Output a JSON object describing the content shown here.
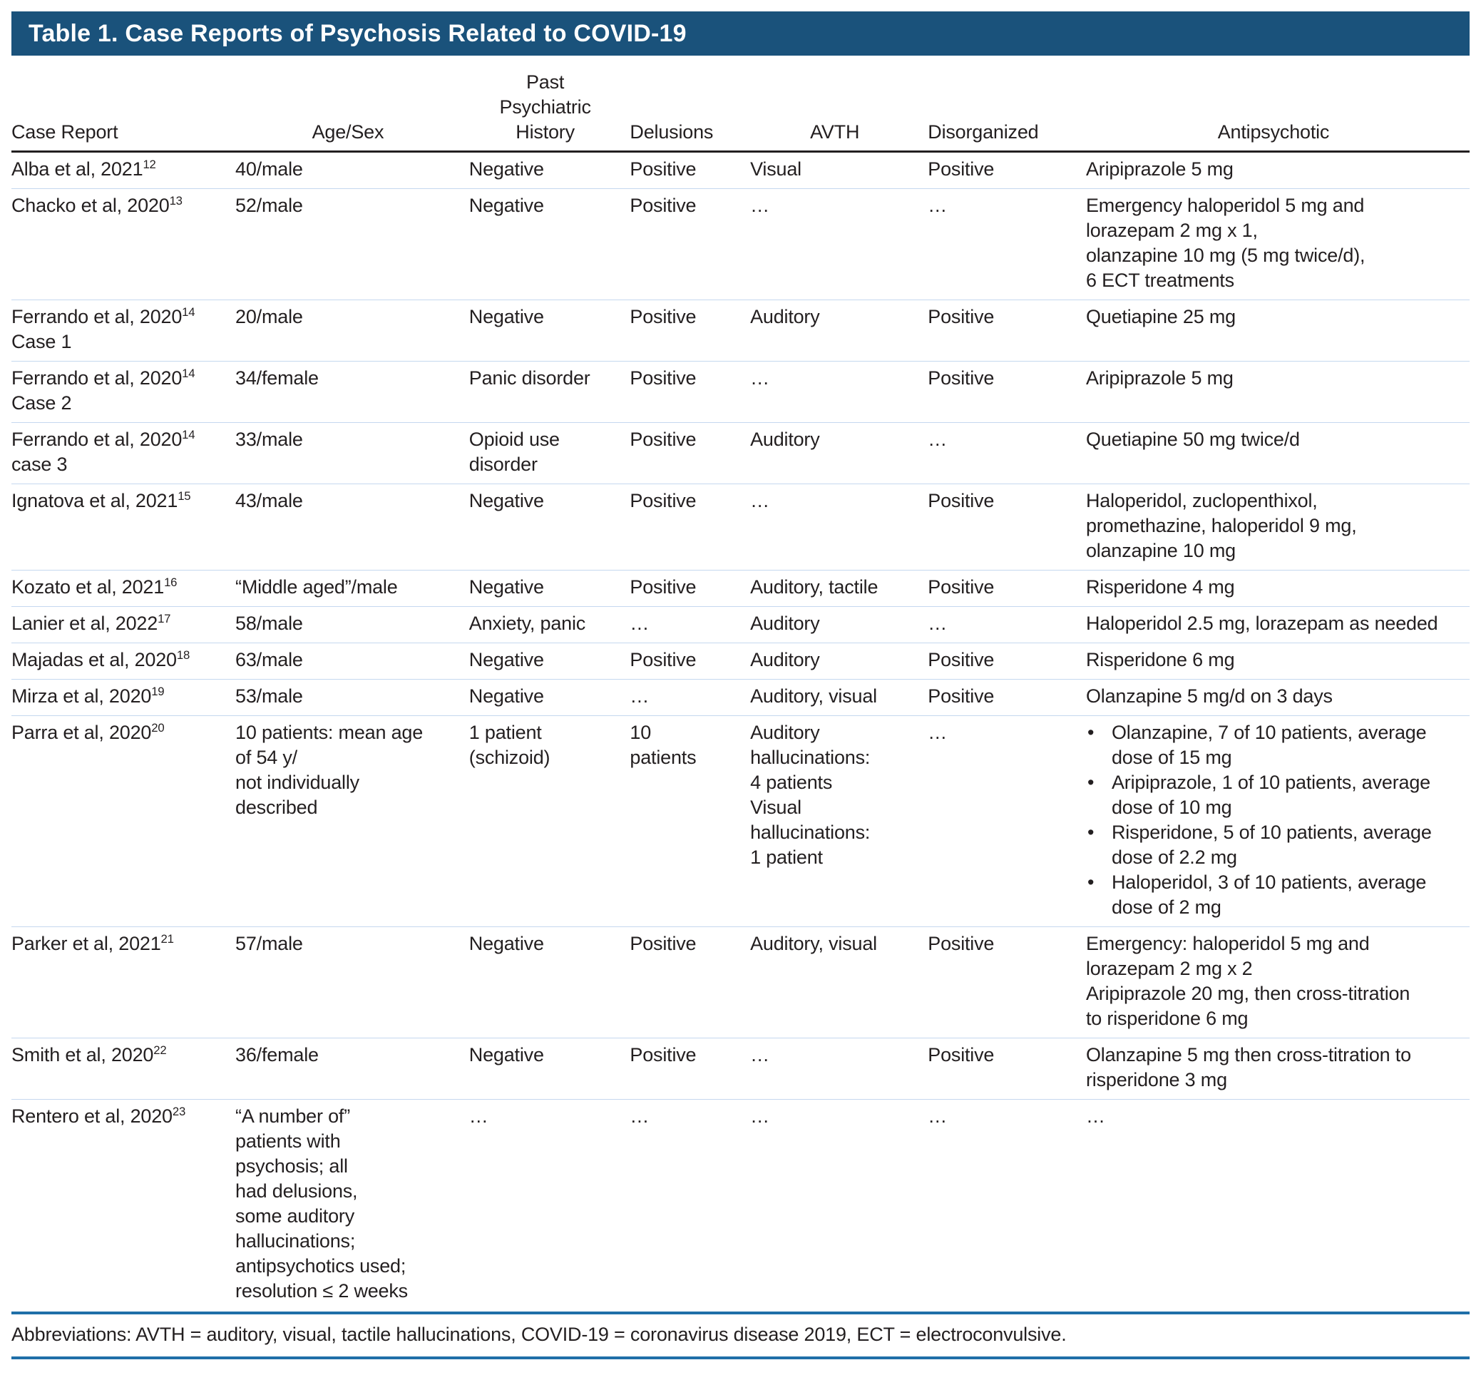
{
  "title": "Table 1. Case Reports of Psychosis Related to COVID-19",
  "columns": [
    {
      "key": "case_report",
      "label": "Case Report"
    },
    {
      "key": "age_sex",
      "label": "Age/Sex"
    },
    {
      "key": "history",
      "label": "Past\nPsychiatric\nHistory"
    },
    {
      "key": "delusions",
      "label": "Delusions"
    },
    {
      "key": "avth",
      "label": "AVTH"
    },
    {
      "key": "disorganized",
      "label": "Disorganized"
    },
    {
      "key": "antipsychotic",
      "label": "Antipsychotic"
    }
  ],
  "rows": [
    {
      "case_report": "Alba et al, 2021",
      "ref": "12",
      "case_label": "",
      "age_sex": "40/male",
      "history": "Negative",
      "delusions": "Positive",
      "avth": "Visual",
      "disorganized": "Positive",
      "antipsychotic": "Aripiprazole 5 mg"
    },
    {
      "case_report": "Chacko et al, 2020",
      "ref": "13",
      "case_label": "",
      "age_sex": "52/male",
      "history": "Negative",
      "delusions": "Positive",
      "avth": "…",
      "disorganized": "…",
      "antipsychotic": "Emergency haloperidol 5 mg and\nlorazepam 2 mg x 1,\nolanzapine 10 mg (5 mg twice/d),\n6 ECT treatments"
    },
    {
      "case_report": "Ferrando et al, 2020",
      "ref": "14",
      "case_label": "Case 1",
      "age_sex": "20/male",
      "history": "Negative",
      "delusions": "Positive",
      "avth": "Auditory",
      "disorganized": "Positive",
      "antipsychotic": "Quetiapine 25 mg"
    },
    {
      "case_report": "Ferrando et al, 2020",
      "ref": "14",
      "case_label": "Case 2",
      "age_sex": "34/female",
      "history": "Panic disorder",
      "delusions": "Positive",
      "avth": "…",
      "disorganized": "Positive",
      "antipsychotic": "Aripiprazole 5 mg"
    },
    {
      "case_report": "Ferrando et al, 2020",
      "ref": "14",
      "case_label": "case 3",
      "age_sex": "33/male",
      "history": "Opioid use\ndisorder",
      "delusions": "Positive",
      "avth": "Auditory",
      "disorganized": "…",
      "antipsychotic": "Quetiapine 50 mg twice/d"
    },
    {
      "case_report": "Ignatova et al, 2021",
      "ref": "15",
      "case_label": "",
      "age_sex": "43/male",
      "history": "Negative",
      "delusions": "Positive",
      "avth": "…",
      "disorganized": "Positive",
      "antipsychotic": "Haloperidol, zuclopenthixol,\npromethazine, haloperidol 9 mg,\nolanzapine 10 mg"
    },
    {
      "case_report": "Kozato et al, 2021",
      "ref": "16",
      "case_label": "",
      "age_sex": "“Middle aged”/male",
      "history": "Negative",
      "delusions": "Positive",
      "avth": "Auditory, tactile",
      "disorganized": "Positive",
      "antipsychotic": "Risperidone 4 mg"
    },
    {
      "case_report": "Lanier et al, 2022",
      "ref": "17",
      "case_label": "",
      "age_sex": "58/male",
      "history": "Anxiety, panic",
      "delusions": "…",
      "avth": "Auditory",
      "disorganized": "…",
      "antipsychotic": "Haloperidol 2.5 mg, lorazepam as needed"
    },
    {
      "case_report": "Majadas et al, 2020",
      "ref": "18",
      "case_label": "",
      "age_sex": "63/male",
      "history": "Negative",
      "delusions": "Positive",
      "avth": "Auditory",
      "disorganized": "Positive",
      "antipsychotic": "Risperidone 6 mg"
    },
    {
      "case_report": "Mirza et al, 2020",
      "ref": "19",
      "case_label": "",
      "age_sex": "53/male",
      "history": "Negative",
      "delusions": "…",
      "avth": "Auditory, visual",
      "disorganized": "Positive",
      "antipsychotic": "Olanzapine 5 mg/d on 3 days"
    },
    {
      "case_report": "Parra et al, 2020",
      "ref": "20",
      "case_label": "",
      "age_sex": "10 patients: mean age\nof 54 y/\nnot individually\ndescribed",
      "history": "1 patient\n(schizoid)",
      "delusions": "10\npatients",
      "avth": "Auditory\nhallucinations:\n4 patients\nVisual\nhallucinations:\n1 patient",
      "disorganized": "…",
      "antipsychotic": {
        "bullets": [
          "Olanzapine, 7 of 10 patients, average dose of 15 mg",
          "Aripiprazole, 1 of 10 patients, average dose of 10 mg",
          "Risperidone, 5 of 10 patients, average dose of 2.2 mg",
          "Haloperidol, 3 of 10 patients, average dose of 2 mg"
        ]
      }
    },
    {
      "case_report": "Parker et al, 2021",
      "ref": "21",
      "case_label": "",
      "age_sex": "57/male",
      "history": "Negative",
      "delusions": "Positive",
      "avth": "Auditory, visual",
      "disorganized": "Positive",
      "antipsychotic": "Emergency: haloperidol 5 mg and\nlorazepam 2 mg x 2\nAripiprazole 20 mg, then cross-titration\nto risperidone 6 mg"
    },
    {
      "case_report": "Smith et al, 2020",
      "ref": "22",
      "case_label": "",
      "age_sex": "36/female",
      "history": "Negative",
      "delusions": "Positive",
      "avth": "…",
      "disorganized": "Positive",
      "antipsychotic": "Olanzapine 5 mg then cross-titration to\nrisperidone 3 mg"
    },
    {
      "case_report": "Rentero et al, 2020",
      "ref": "23",
      "case_label": "",
      "age_sex": "“A number of”\npatients with\npsychosis; all\nhad delusions,\nsome auditory\nhallucinations;\nantipsychotics used;\nresolution ≤ 2 weeks",
      "history": "…",
      "delusions": "…",
      "avth": "…",
      "disorganized": "…",
      "antipsychotic": "…"
    }
  ],
  "footnote": "Abbreviations: AVTH = auditory, visual, tactile hallucinations, COVID-19 = coronavirus disease 2019, ECT = electroconvulsive.",
  "colors": {
    "title_bar_bg": "#1a527b",
    "title_text": "#ffffff",
    "body_text": "#231f20",
    "header_rule": "#231f20",
    "row_divider": "#c5d8ef",
    "footer_rule": "#1f6fa8"
  }
}
